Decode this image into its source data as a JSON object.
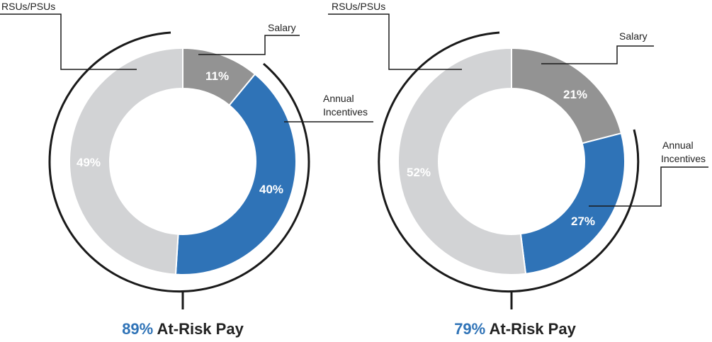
{
  "colors": {
    "salary": "#939393",
    "annual_incentives": "#2f73b7",
    "rsus_psus": "#d2d3d5",
    "accent": "#2f73b7",
    "lines": "#1a1a1a"
  },
  "chart_data": [
    {
      "type": "pie",
      "donut": true,
      "series": [
        {
          "label": "Salary",
          "value": 11
        },
        {
          "label": "Annual Incentives",
          "value": 40
        },
        {
          "label": "RSUs/PSUs",
          "value": 49
        }
      ],
      "labels": {
        "salary": "Salary",
        "annual_line1": "Annual",
        "annual_line2": "Incentives",
        "rsus": "RSUs/PSUs",
        "salary_pct": "11%",
        "annual_pct": "40%",
        "rsus_pct": "49%"
      },
      "caption": {
        "value": "89%",
        "text": "At-Risk Pay"
      }
    },
    {
      "type": "pie",
      "donut": true,
      "series": [
        {
          "label": "Salary",
          "value": 21
        },
        {
          "label": "Annual Incentives",
          "value": 27
        },
        {
          "label": "RSUs/PSUs",
          "value": 52
        }
      ],
      "labels": {
        "salary": "Salary",
        "annual_line1": "Annual",
        "annual_line2": "Incentives",
        "rsus": "RSUs/PSUs",
        "salary_pct": "21%",
        "annual_pct": "27%",
        "rsus_pct": "52%"
      },
      "caption": {
        "value": "79%",
        "text": "At-Risk Pay"
      }
    }
  ]
}
